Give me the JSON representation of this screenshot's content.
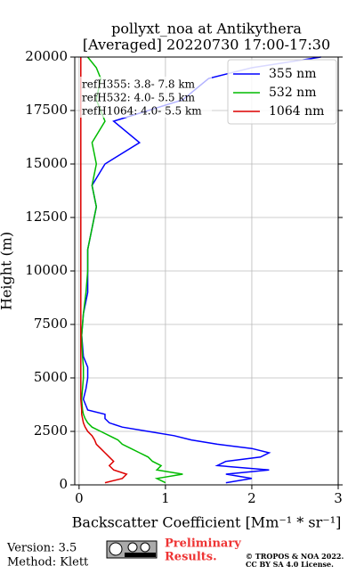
{
  "chart_data": {
    "type": "profile",
    "title": [
      "pollyxt_noa at Antikythera",
      "[Averaged] 20220730 17:00-17:30"
    ],
    "xlabel": "Backscatter Coefficient [Mm⁻¹ * sr⁻¹]",
    "ylabel": "Height (m)",
    "xlim": [
      -0.05,
      3
    ],
    "xticks": [
      0,
      1,
      2,
      3
    ],
    "ylim": [
      0,
      20000
    ],
    "yticks": [
      0,
      2500,
      5000,
      7500,
      10000,
      12500,
      15000,
      17500,
      20000
    ],
    "grid": true,
    "legend": "upper right",
    "heights": [
      100,
      300,
      500,
      700,
      900,
      1100,
      1300,
      1500,
      1700,
      1900,
      2100,
      2300,
      2500,
      2700,
      2900,
      3100,
      3300,
      3500,
      4000,
      4500,
      5000,
      5500,
      6000,
      7000,
      8000,
      9000,
      10000,
      11000,
      12000,
      13000,
      14000,
      15000,
      16000,
      17000,
      18000,
      19000,
      19500,
      20000
    ],
    "series": [
      {
        "name": "355 nm",
        "color": "#0000ff",
        "values": [
          1.7,
          2.0,
          1.7,
          2.2,
          1.6,
          1.7,
          2.1,
          2.2,
          2.0,
          1.6,
          1.3,
          1.1,
          0.8,
          0.5,
          0.35,
          0.3,
          0.3,
          0.1,
          0.05,
          0.08,
          0.1,
          0.1,
          0.05,
          0.03,
          0.05,
          0.1,
          0.1,
          0.1,
          0.15,
          0.2,
          0.15,
          0.3,
          0.7,
          0.4,
          1.2,
          1.5,
          2.0,
          2.8
        ]
      },
      {
        "name": "532 nm",
        "color": "#00bb00",
        "values": [
          1.0,
          0.9,
          1.2,
          0.9,
          0.95,
          0.85,
          0.8,
          0.7,
          0.6,
          0.5,
          0.45,
          0.35,
          0.25,
          0.15,
          0.1,
          0.07,
          0.05,
          0.04,
          0.03,
          0.04,
          0.05,
          0.05,
          0.04,
          0.03,
          0.05,
          0.08,
          0.1,
          0.1,
          0.15,
          0.2,
          0.15,
          0.2,
          0.15,
          0.3,
          0.2,
          0.25,
          0.2,
          0.1
        ]
      },
      {
        "name": "1064 nm",
        "color": "#dd0000",
        "values": [
          0.3,
          0.5,
          0.55,
          0.4,
          0.35,
          0.4,
          0.35,
          0.3,
          0.25,
          0.2,
          0.18,
          0.15,
          0.1,
          0.07,
          0.05,
          0.04,
          0.03,
          0.03,
          0.02,
          0.02,
          0.02,
          0.02,
          0.02,
          0.02,
          0.02,
          0.02,
          0.02,
          0.02,
          0.02,
          0.02,
          0.02,
          0.02,
          0.02,
          0.02,
          0.02,
          0.02,
          0.02,
          0.02
        ]
      }
    ],
    "annotations": [
      "refH355:  3.8- 7.8 km",
      "refH532:  4.0- 5.5 km",
      "refH1064:  4.0- 5.5 km"
    ]
  },
  "footer": {
    "version": "Version: 3.5",
    "method": "Method: Klett",
    "status": [
      "Preliminary",
      "Results."
    ],
    "copyright": [
      "© TROPOS & NOA 2022.",
      "CC BY SA 4.0 License."
    ]
  }
}
